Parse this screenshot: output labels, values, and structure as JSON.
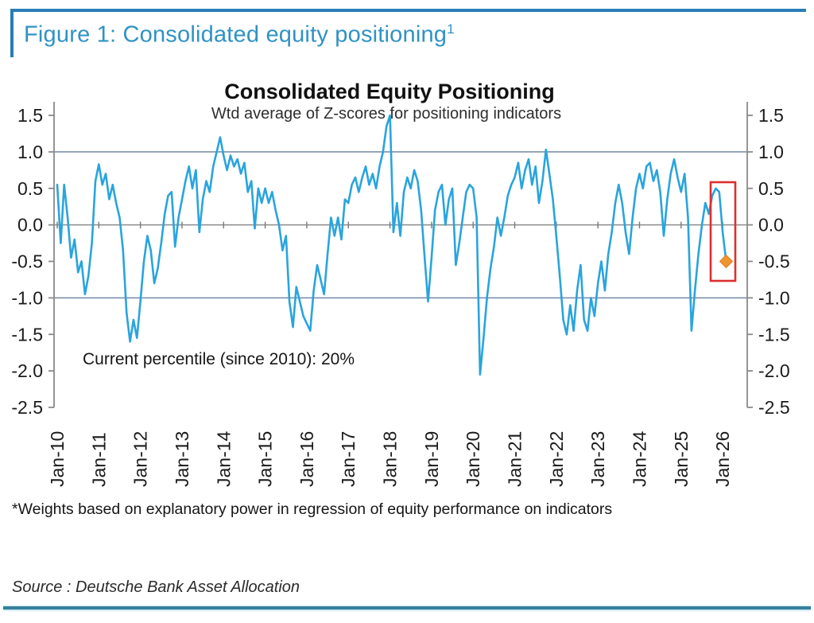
{
  "figure_header": {
    "title": "Figure 1: Consolidated equity positioning",
    "superscript": "1"
  },
  "chart_data": {
    "type": "line",
    "title": "Consolidated Equity Positioning",
    "subtitle": "Wtd average of Z-scores for positioning indicators",
    "annotation": "Current percentile (since 2010): 20%",
    "x_tick_labels": [
      "Jan-10",
      "Jan-11",
      "Jan-12",
      "Jan-13",
      "Jan-14",
      "Jan-15",
      "Jan-16",
      "Jan-17",
      "Jan-18",
      "Jan-19",
      "Jan-20",
      "Jan-21",
      "Jan-22",
      "Jan-23",
      "Jan-24",
      "Jan-25",
      "Jan-26"
    ],
    "y_tick_labels": [
      "1.5",
      "1.0",
      "0.5",
      "0.0",
      "-0.5",
      "-1.0",
      "-1.5",
      "-2.0",
      "-2.5"
    ],
    "y_ticks": [
      1.5,
      1.0,
      0.5,
      0.0,
      -0.5,
      -1.0,
      -1.5,
      -2.0,
      -2.5
    ],
    "ylim": [
      -2.5,
      1.5
    ],
    "gridlines_at": [
      1.0,
      0.0,
      -1.0
    ],
    "legend": "none",
    "series": [
      {
        "name": "Wtd average of Z-scores for positioning indicators",
        "start_month": "2010-01",
        "frequency": "monthly",
        "values": [
          0.55,
          -0.25,
          0.55,
          0.1,
          -0.45,
          -0.2,
          -0.65,
          -0.5,
          -0.95,
          -0.7,
          -0.25,
          0.6,
          0.83,
          0.55,
          0.7,
          0.35,
          0.55,
          0.3,
          0.1,
          -0.35,
          -1.2,
          -1.6,
          -1.3,
          -1.55,
          -1.05,
          -0.5,
          -0.15,
          -0.35,
          -0.8,
          -0.6,
          -0.25,
          0.15,
          0.4,
          0.45,
          -0.3,
          0.1,
          0.35,
          0.6,
          0.8,
          0.5,
          0.75,
          -0.1,
          0.35,
          0.6,
          0.45,
          0.8,
          1.0,
          1.2,
          0.95,
          0.75,
          0.95,
          0.8,
          0.9,
          0.7,
          0.85,
          0.45,
          0.6,
          -0.05,
          0.5,
          0.3,
          0.5,
          0.3,
          0.45,
          0.2,
          0.0,
          -0.35,
          -0.15,
          -1.05,
          -1.4,
          -0.85,
          -1.05,
          -1.25,
          -1.35,
          -1.45,
          -0.9,
          -0.55,
          -0.75,
          -0.95,
          -0.4,
          0.1,
          -0.15,
          0.1,
          -0.2,
          0.35,
          0.3,
          0.55,
          0.65,
          0.45,
          0.65,
          0.8,
          0.55,
          0.7,
          0.5,
          0.8,
          1.0,
          1.35,
          1.5,
          -0.1,
          0.3,
          -0.15,
          0.45,
          0.65,
          0.5,
          0.75,
          0.6,
          0.2,
          -0.45,
          -1.05,
          -0.45,
          0.2,
          0.45,
          0.55,
          0.0,
          0.35,
          0.5,
          -0.55,
          -0.25,
          0.1,
          0.45,
          0.55,
          0.5,
          0.1,
          -2.05,
          -1.55,
          -1.0,
          -0.6,
          -0.3,
          0.1,
          -0.15,
          0.1,
          0.4,
          0.55,
          0.65,
          0.85,
          0.5,
          0.75,
          0.9,
          0.55,
          0.8,
          0.3,
          0.6,
          1.03,
          0.7,
          0.35,
          -0.15,
          -0.7,
          -1.3,
          -1.5,
          -1.1,
          -1.45,
          -0.9,
          -0.55,
          -1.3,
          -1.45,
          -1.0,
          -1.25,
          -0.8,
          -0.5,
          -0.9,
          -0.4,
          -0.1,
          0.3,
          0.55,
          0.3,
          -0.1,
          -0.4,
          0.1,
          0.5,
          0.7,
          0.5,
          0.8,
          0.85,
          0.6,
          0.75,
          0.45,
          -0.15,
          0.35,
          0.7,
          0.9,
          0.65,
          0.45,
          0.7,
          0.1,
          -1.45,
          -0.9,
          -0.4,
          0.0,
          0.3,
          0.15,
          0.4,
          0.5,
          0.45,
          -0.1,
          -0.5
        ]
      }
    ],
    "highlight_box": {
      "purpose": "highlights latest drop in positioning",
      "color": "#dd2f2f"
    },
    "last_point_marker": {
      "shape": "diamond",
      "color": "#ef9433",
      "value": -0.5
    }
  },
  "footnote": "*Weights based on explanatory power in regression of equity performance on indicators",
  "source": "Source : Deutsche Bank Asset Allocation",
  "colors": {
    "header_blue": "#2f92c5",
    "frame_blue": "#2a7db6",
    "line_blue": "#29a4de",
    "grid_blue_gray": "#7389a5",
    "zero_line_gray": "#8c8c8c",
    "axis_gray": "#8a8a8a",
    "highlight_red": "#dd2f2f",
    "marker_orange": "#ef9433",
    "bottom_rule_teal": "#35809c"
  }
}
